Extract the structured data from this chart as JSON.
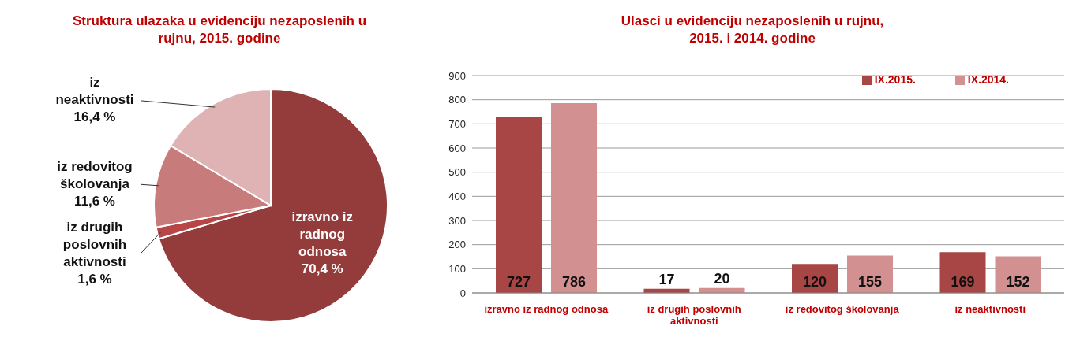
{
  "chart_data": [
    {
      "type": "pie",
      "title": "Struktura ulazaka u evidenciju nezaposlenih u rujnu, 2015. godine",
      "categories": [
        "izravno iz radnog odnosa",
        "iz drugih poslovnih aktivnosti",
        "iz redovitog školovanja",
        "iz neaktivnosti"
      ],
      "values": [
        70.4,
        1.6,
        11.6,
        16.4
      ],
      "colors": [
        "#943b3b",
        "#b84646",
        "#c87b7b",
        "#dfb3b3"
      ],
      "value_labels": [
        "70,4 %",
        "1,6 %",
        "11,6 %",
        "16,4 %"
      ]
    },
    {
      "type": "bar",
      "title": "Ulasci u evidenciju nezaposlenih u rujnu, 2015. i 2014. godine",
      "categories": [
        "izravno iz radnog odnosa",
        "iz drugih poslovnih aktivnosti",
        "iz redovitog školovanja",
        "iz neaktivnosti"
      ],
      "series": [
        {
          "name": "IX.2015.",
          "color": "#a84545",
          "values": [
            727,
            17,
            120,
            169
          ]
        },
        {
          "name": "IX.2014.",
          "color": "#d39090",
          "values": [
            786,
            20,
            155,
            152
          ]
        }
      ],
      "ylim": [
        0,
        900
      ],
      "yticks": [
        0,
        100,
        200,
        300,
        400,
        500,
        600,
        700,
        800,
        900
      ],
      "grid": "y",
      "legend": "top right",
      "data_labels": true
    }
  ]
}
